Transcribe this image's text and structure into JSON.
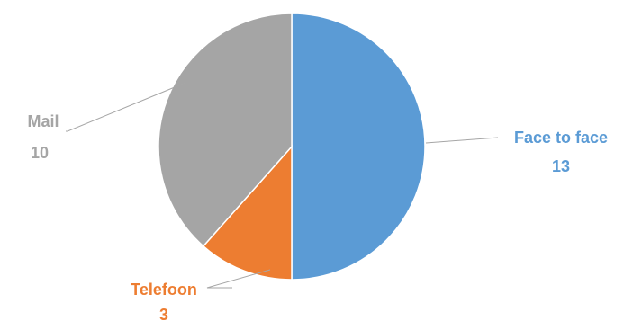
{
  "chart_data": {
    "type": "pie",
    "categories": [
      "Face to face",
      "Telefoon",
      "Mail"
    ],
    "values": [
      13,
      3,
      10
    ],
    "colors": [
      "#5B9BD5",
      "#ED7D31",
      "#A5A5A5"
    ],
    "start_angle": "top, clockwise",
    "data_labels": "category name and value, outside with leader lines"
  }
}
